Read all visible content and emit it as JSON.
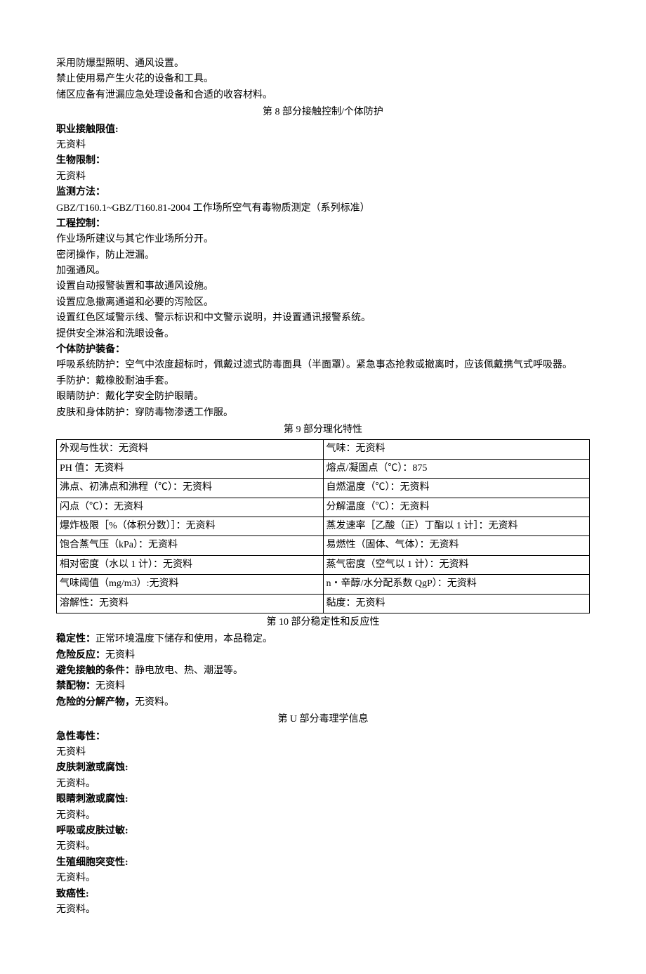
{
  "intro": {
    "l1": "采用防爆型照明、通风设置。",
    "l2": "禁止使用易产生火花的设备和工具。",
    "l3": "储区应备有泄漏应急处理设备和合适的收容材料。"
  },
  "s8": {
    "header": "第 8 部分接触控制/个体防护",
    "h1": "职业接触限值:",
    "v1": "无资料",
    "h2": "生物限制：",
    "v2": "无资料",
    "h3": "监测方法：",
    "v3": "GBZ/T160.1~GBZ/T160.81-2004 工作场所空气有毒物质测定（系列标准）",
    "h4": "工程控制：",
    "e1": "作业场所建议与其它作业场所分开。",
    "e2": "密闭操作，防止泄漏。",
    "e3": "加强通风。",
    "e4": "设置自动报警装置和事故通风设施。",
    "e5": "设置应急撤离通道和必要的泻险区。",
    "e6": "设置红色区域警示线、警示标识和中文警示说明，并设置通讯报警系统。",
    "e7": "提供安全淋浴和洗眼设备。",
    "h5": "个体防护装备：",
    "p1": "呼吸系统防护：空气中浓度超标时，佩戴过滤式防毒面具（半面罩）。紧急事态抢救或撤离时，应该佩戴携气式呼吸器。",
    "p2": "手防护：戴橡胶耐油手套。",
    "p3": "眼睛防护：戴化学安全防护眼睛。",
    "p4": "皮肤和身体防护：穿防毒物渗透工作服。"
  },
  "s9": {
    "header": "第 9 部分理化特性",
    "rows": [
      [
        "外观与性状：无资料",
        "气味：无资料"
      ],
      [
        "PH 值：无资料",
        "熔点/凝固点（℃）：875"
      ],
      [
        "沸点、初沸点和沸程（℃）：无资料",
        "自燃温度（℃）：无资料"
      ],
      [
        "闪点（℃）：无资料",
        "分解温度（℃）：无资料"
      ],
      [
        "爆炸极限［%（体积分数）］：无资料",
        "蒸发速率［乙酸（正）丁酯以 1 计］：无资料"
      ],
      [
        "饱合蒸气压（kPa）：无资料",
        "易燃性（固体、气体）：无资料"
      ],
      [
        "相对密度（水以 1 计）：无资料",
        "蒸气密度（空气以 1 计）：无资料"
      ],
      [
        "气味阈值（mg/m3）:无资料",
        "n・辛醇/水分配系数 QgP）：无资料"
      ],
      [
        "溶解性：无资料",
        "黏度：无资料"
      ]
    ]
  },
  "s10": {
    "header": "第 10 部分稳定性和反应性",
    "l1a": "稳定性：",
    "l1b": "正常环境温度下储存和使用，本品稳定。",
    "l2a": "危险反应：",
    "l2b": "无资料",
    "l3a": "避免接触的条件：",
    "l3b": "静电放电、热、潮湿等。",
    "l4a": "禁配物：",
    "l4b": "无资料",
    "l5a": "危险的分解产物，",
    "l5b": "无资料。"
  },
  "sU": {
    "header": "第 U 部分毒理学信息",
    "h1": "急性毒性：",
    "v1": "无资料",
    "h2": "皮肤刺激或腐蚀:",
    "v2": "无资料。",
    "h3": "眼睛刺激或腐蚀:",
    "v3": "无资料。",
    "h4": "呼吸或皮肤过敏:",
    "v4": "无资料。",
    "h5": "生殖细胞突变性:",
    "v5": "无资料。",
    "h6": "致癌性:",
    "v6": "无资料。"
  }
}
